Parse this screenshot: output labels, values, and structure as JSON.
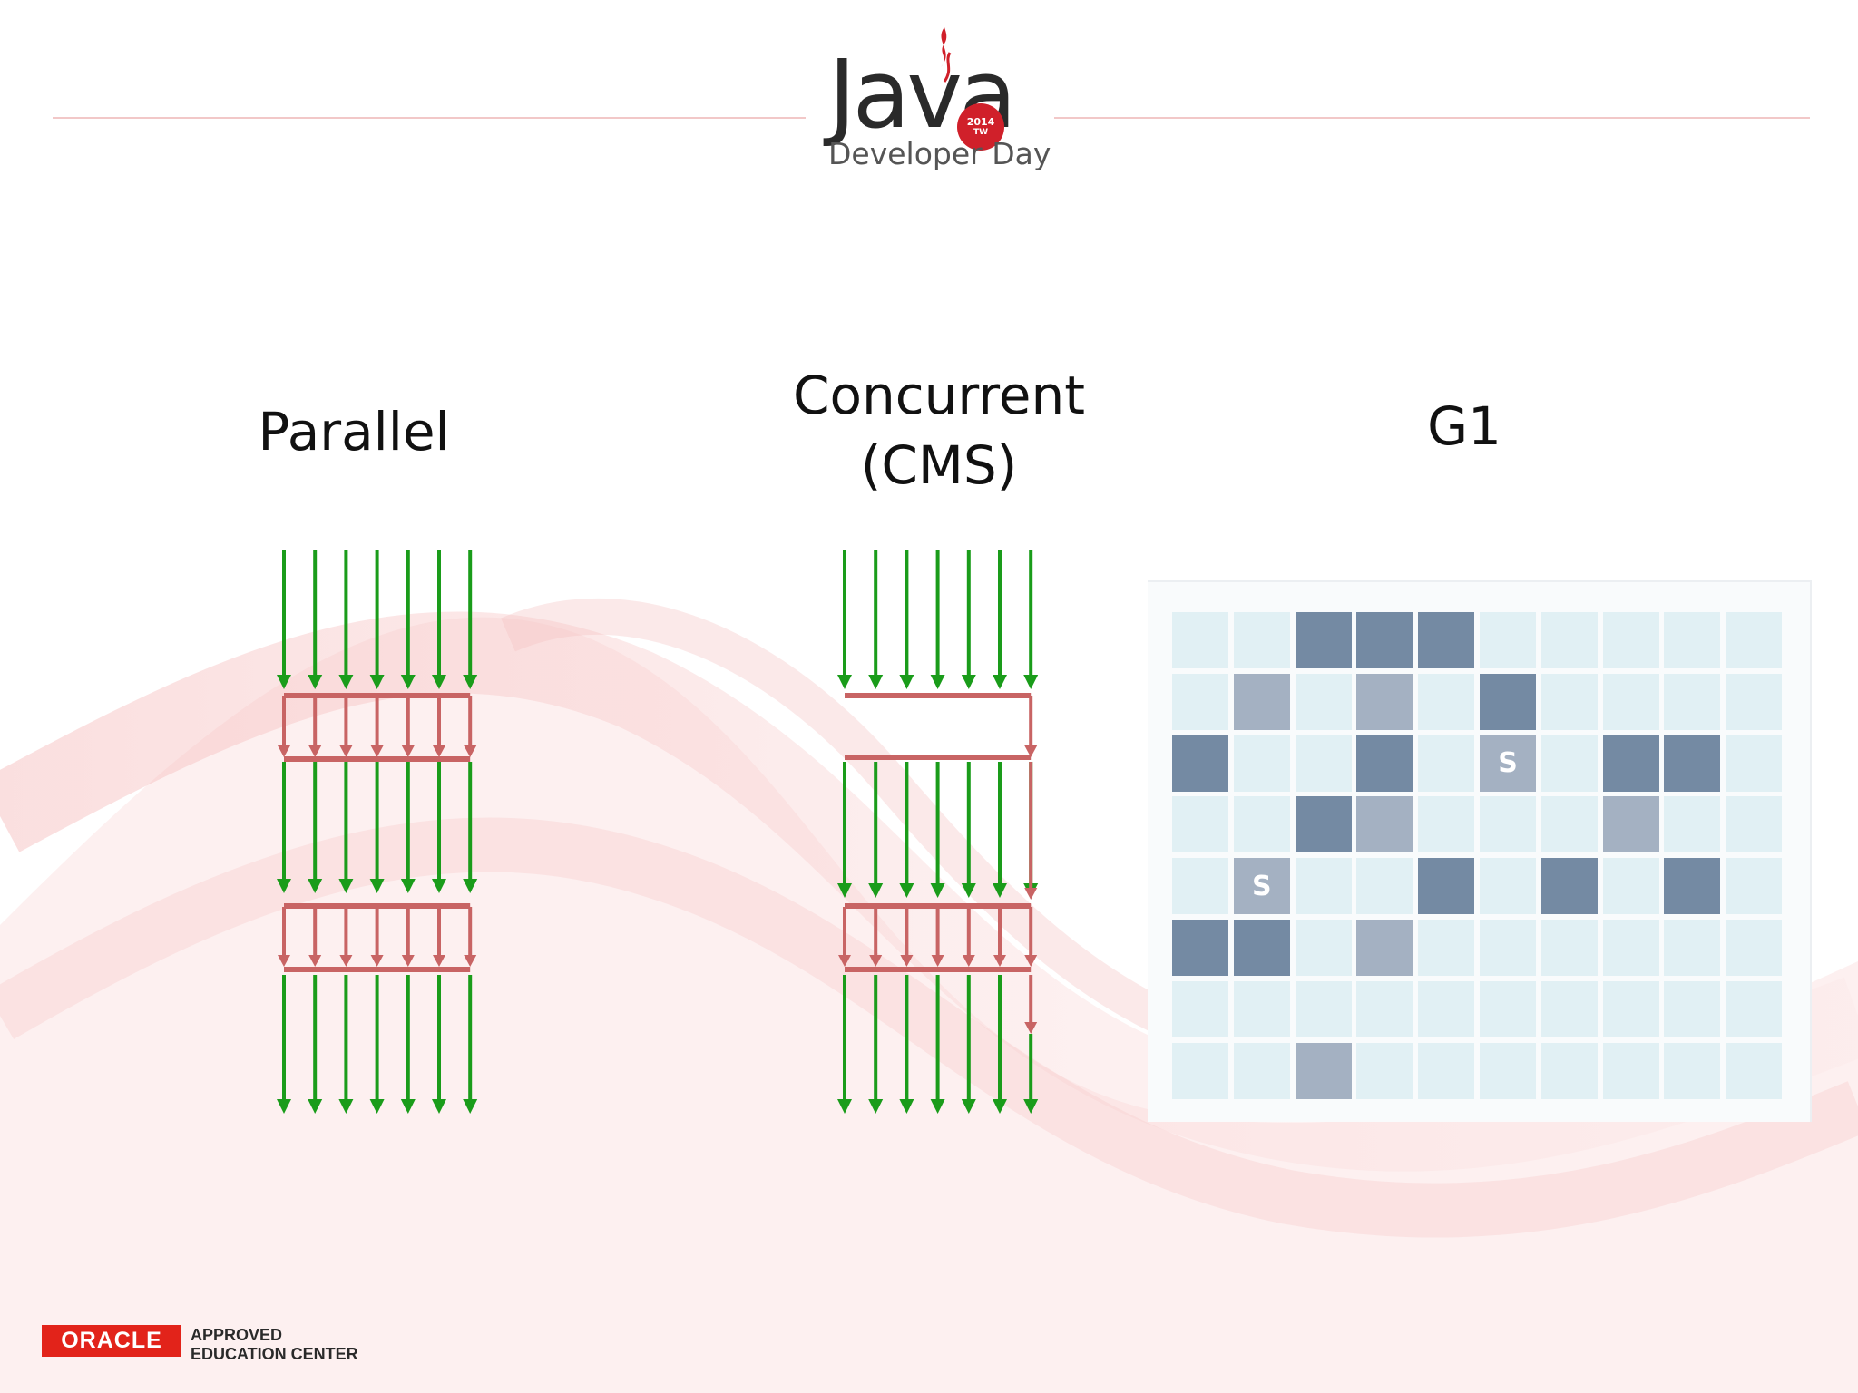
{
  "header": {
    "logo_word": "Java",
    "badge_year": "2014",
    "badge_region": "TW",
    "logo_subtitle": "Developer Day"
  },
  "columns": {
    "parallel": {
      "title": "Parallel"
    },
    "concurrent": {
      "title": "Concurrent\n(CMS)"
    },
    "g1": {
      "title": "G1"
    }
  },
  "footer": {
    "brand": "ORACLE",
    "line1": "APPROVED",
    "line2": "EDUCATION CENTER"
  },
  "colors": {
    "app_thread_arrow": "#1a9c1a",
    "gc_thread_arrow": "#c86464",
    "region_empty": "#e1f0f4",
    "region_old": "#748aa3",
    "region_young": "#a4b1c2",
    "accent_red": "#d0202a"
  },
  "diagram": {
    "thread_count": 7,
    "parallel_phases": [
      "app",
      "gc",
      "app",
      "gc",
      "app"
    ],
    "concurrent_phases": [
      "app",
      "initial-mark",
      "app",
      "remark",
      "app",
      "concurrent-sweep-end",
      "app"
    ]
  },
  "g1": {
    "rows": 8,
    "cols": 10,
    "grid": [
      [
        "E",
        "E",
        "O",
        "O",
        "O",
        "E",
        "E",
        "E",
        "E",
        "E"
      ],
      [
        "E",
        "Y",
        "E",
        "Y",
        "E",
        "O",
        "E",
        "E",
        "E",
        "E"
      ],
      [
        "O",
        "E",
        "E",
        "O",
        "E",
        "S",
        "E",
        "O",
        "O",
        "E"
      ],
      [
        "E",
        "E",
        "O",
        "Y",
        "E",
        "E",
        "E",
        "Y",
        "E",
        "E"
      ],
      [
        "E",
        "S",
        "E",
        "E",
        "O",
        "E",
        "O",
        "E",
        "O",
        "E"
      ],
      [
        "O",
        "O",
        "E",
        "Y",
        "E",
        "E",
        "E",
        "E",
        "E",
        "E"
      ],
      [
        "E",
        "E",
        "E",
        "E",
        "E",
        "E",
        "E",
        "E",
        "E",
        "E"
      ],
      [
        "E",
        "E",
        "Y",
        "E",
        "E",
        "E",
        "E",
        "E",
        "E",
        "E"
      ]
    ],
    "survivor_label": "S"
  }
}
